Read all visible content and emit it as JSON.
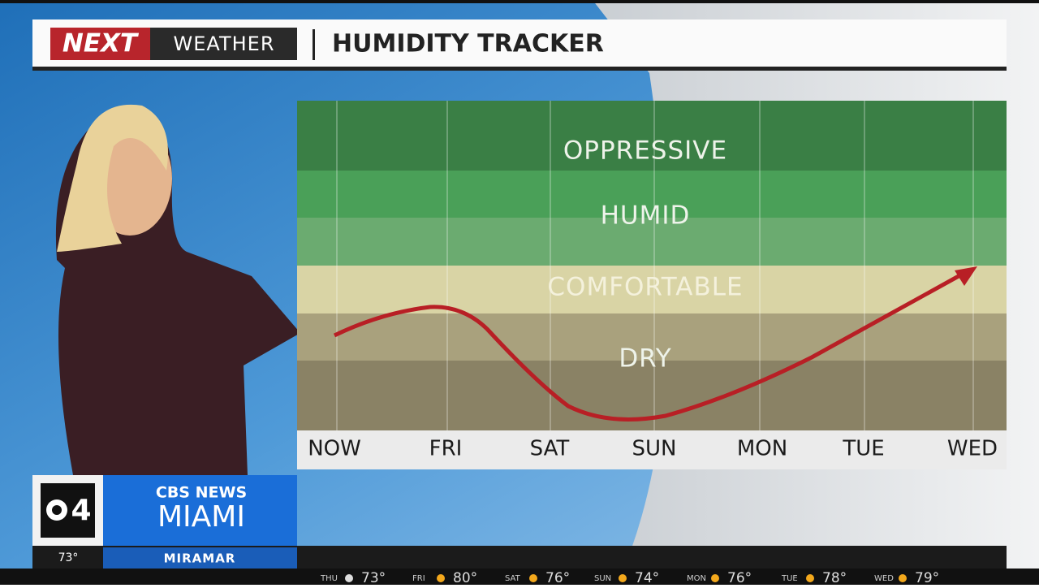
{
  "header": {
    "brand": "NEXT",
    "section": "WEATHER",
    "title": "HUMIDITY TRACKER"
  },
  "tracker": {
    "bands": [
      "OPPRESSIVE",
      "HUMID",
      "COMFORTABLE",
      "DRY"
    ],
    "days": [
      "NOW",
      "FRI",
      "SAT",
      "SUN",
      "MON",
      "TUE",
      "WED"
    ]
  },
  "station": {
    "channel": "4",
    "network": "CBS NEWS",
    "city": "MIAMI",
    "temperature": "73°",
    "location": "MIRAMAR"
  },
  "ticker": [
    {
      "day": "THU",
      "temp": "73°"
    },
    {
      "day": "FRI",
      "temp": "80°"
    },
    {
      "day": "SAT",
      "temp": "76°"
    },
    {
      "day": "SUN",
      "temp": "74°"
    },
    {
      "day": "MON",
      "temp": "76°"
    },
    {
      "day": "TUE",
      "temp": "78°"
    },
    {
      "day": "WED",
      "temp": "79°"
    }
  ]
}
